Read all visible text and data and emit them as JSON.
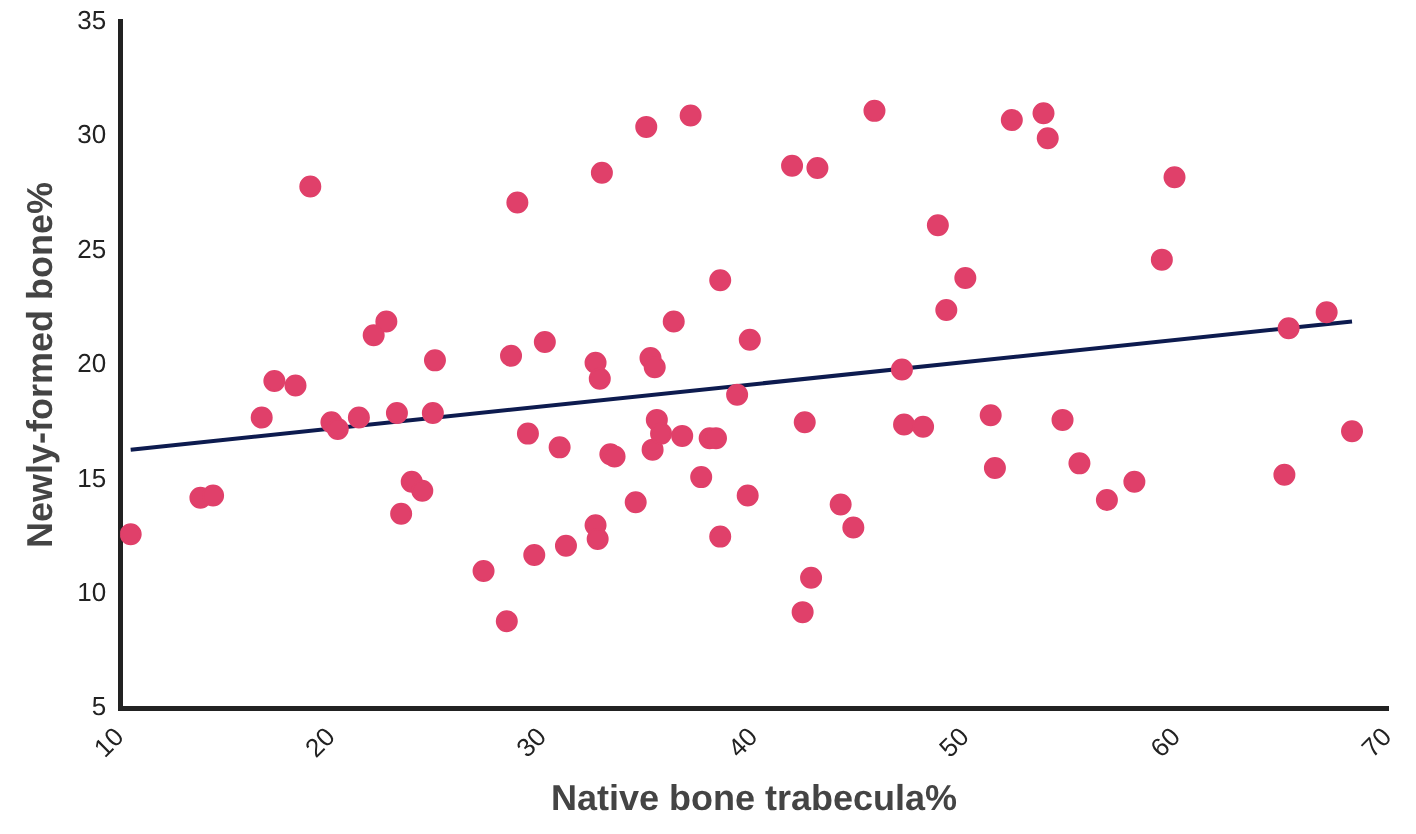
{
  "chart_data": {
    "type": "scatter",
    "xlabel": "Native bone trabecula%",
    "ylabel": "Newly-formed bone%",
    "xlim": [
      10,
      70
    ],
    "xticks": [
      10,
      20,
      30,
      40,
      50,
      60,
      70
    ],
    "ylim": [
      5,
      35
    ],
    "yticks": [
      5,
      10,
      15,
      20,
      25,
      30,
      35
    ],
    "grid": false,
    "legend": false,
    "marker": "circle",
    "series": [
      {
        "color": "#e0406a",
        "x": [
          10.5,
          13.8,
          14.4,
          16.7,
          17.3,
          18.3,
          19.0,
          20.0,
          20.3,
          21.3,
          22.0,
          22.6,
          23.1,
          23.3,
          23.8,
          24.3,
          24.8,
          24.9,
          27.2,
          28.3,
          28.5,
          28.8,
          29.3,
          29.6,
          30.1,
          30.8,
          31.1,
          32.5,
          32.5,
          32.6,
          32.7,
          32.8,
          33.2,
          33.4,
          34.4,
          34.9,
          35.1,
          35.2,
          35.3,
          35.4,
          35.6,
          36.2,
          36.6,
          37.0,
          37.5,
          37.9,
          38.2,
          38.4,
          38.4,
          39.2,
          39.7,
          39.8,
          41.8,
          42.3,
          42.4,
          42.7,
          43.0,
          44.1,
          44.7,
          45.7,
          47.0,
          47.1,
          48.0,
          48.7,
          49.1,
          50.0,
          51.2,
          51.4,
          52.2,
          53.7,
          53.9,
          54.6,
          55.4,
          56.7,
          58.0,
          59.3,
          59.9,
          65.1,
          65.3,
          67.1,
          68.3
        ],
        "values": [
          12.6,
          14.2,
          14.3,
          17.7,
          19.3,
          19.1,
          27.8,
          17.5,
          17.2,
          17.7,
          21.3,
          21.9,
          17.9,
          13.5,
          14.9,
          14.5,
          17.9,
          20.2,
          11.0,
          8.8,
          20.4,
          27.1,
          17.0,
          11.7,
          21.0,
          16.4,
          12.1,
          20.1,
          13.0,
          12.4,
          19.4,
          28.4,
          16.1,
          16.0,
          14.0,
          30.4,
          20.3,
          16.3,
          19.9,
          17.6,
          17.0,
          21.9,
          16.9,
          30.9,
          15.1,
          16.8,
          16.8,
          12.5,
          23.7,
          18.7,
          14.3,
          21.1,
          28.7,
          9.2,
          17.5,
          10.7,
          28.6,
          13.9,
          12.9,
          31.1,
          19.8,
          17.4,
          17.3,
          26.1,
          22.4,
          23.8,
          17.8,
          15.5,
          30.7,
          31.0,
          29.9,
          17.6,
          15.7,
          14.1,
          14.9,
          24.6,
          28.2,
          15.2,
          21.6,
          22.3,
          17.1
        ]
      },
      {
        "type": "line",
        "color": "#0d1b4f",
        "x": [
          10.5,
          68.3
        ],
        "values": [
          16.3,
          21.9
        ],
        "marker": "none",
        "line_style": "solid"
      }
    ]
  }
}
